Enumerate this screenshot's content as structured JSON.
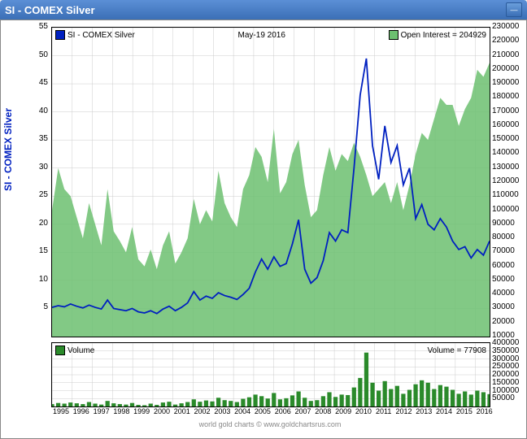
{
  "window": {
    "title": "SI  -  COMEX Silver"
  },
  "main": {
    "legend_left": "SI  -  COMEX Silver",
    "date_label": "May-19  2016",
    "legend_right": "Open Interest = 204929",
    "ylabel": "SI - COMEX Silver",
    "y_left": {
      "min": 0,
      "max": 55,
      "step": 5
    },
    "y_right": {
      "min": 10000,
      "max": 230000,
      "step": 10000
    },
    "price_color": "#0020c0",
    "oi_color": "#6cc070",
    "grid_color": "#cccccc",
    "bg": "#ffffff"
  },
  "sub": {
    "legend_left": "Volume",
    "legend_right": "Volume = 77908",
    "y_right": {
      "min": 0,
      "max": 400000,
      "step": 50000
    },
    "vol_color": "#2a8a2a"
  },
  "x": {
    "years": [
      1995,
      1996,
      1997,
      1998,
      1999,
      2000,
      2001,
      2002,
      2003,
      2004,
      2005,
      2006,
      2007,
      2008,
      2009,
      2010,
      2011,
      2012,
      2013,
      2014,
      2015,
      2016
    ]
  },
  "footer": "world gold charts © www.goldchartsrus.com",
  "series": {
    "price": [
      5.2,
      5.5,
      5.3,
      5.8,
      5.4,
      5.1,
      5.6,
      5.2,
      4.9,
      6.5,
      5.0,
      4.8,
      4.6,
      5.0,
      4.4,
      4.2,
      4.6,
      4.1,
      4.9,
      5.4,
      4.6,
      5.2,
      6.0,
      8.0,
      6.5,
      7.2,
      6.8,
      7.8,
      7.3,
      7.0,
      6.6,
      7.5,
      8.6,
      11.5,
      13.8,
      12.0,
      14.2,
      12.5,
      13.0,
      16.5,
      20.8,
      12.0,
      9.5,
      10.5,
      13.5,
      18.5,
      17.0,
      19.0,
      18.5,
      30.0,
      43.0,
      49.5,
      34.0,
      28.0,
      37.5,
      31.0,
      34.0,
      27.0,
      30.0,
      21.0,
      23.5,
      20.0,
      19.0,
      21.0,
      19.5,
      17.0,
      15.5,
      16.0,
      14.0,
      15.5,
      14.5,
      17.0
    ],
    "open_interest": [
      100000,
      130000,
      115000,
      110000,
      95000,
      80000,
      105000,
      90000,
      75000,
      115000,
      85000,
      78000,
      70000,
      88000,
      65000,
      60000,
      72000,
      58000,
      75000,
      85000,
      62000,
      70000,
      80000,
      108000,
      90000,
      100000,
      92000,
      128000,
      105000,
      95000,
      88000,
      115000,
      125000,
      145000,
      138000,
      120000,
      158000,
      112000,
      120000,
      140000,
      150000,
      118000,
      95000,
      100000,
      125000,
      145000,
      128000,
      140000,
      135000,
      148000,
      138000,
      125000,
      110000,
      115000,
      120000,
      105000,
      120000,
      100000,
      118000,
      140000,
      155000,
      150000,
      165000,
      180000,
      175000,
      175000,
      160000,
      172000,
      180000,
      200000,
      195000,
      204929
    ],
    "volume": [
      15000,
      22000,
      18000,
      25000,
      20000,
      15000,
      28000,
      18000,
      12000,
      35000,
      20000,
      15000,
      12000,
      22000,
      10000,
      8000,
      18000,
      10000,
      25000,
      30000,
      12000,
      20000,
      28000,
      45000,
      30000,
      38000,
      32000,
      55000,
      40000,
      35000,
      28000,
      48000,
      58000,
      75000,
      65000,
      50000,
      85000,
      45000,
      52000,
      70000,
      95000,
      55000,
      35000,
      40000,
      65000,
      90000,
      60000,
      75000,
      72000,
      120000,
      180000,
      340000,
      150000,
      100000,
      160000,
      110000,
      130000,
      80000,
      105000,
      140000,
      165000,
      150000,
      110000,
      135000,
      125000,
      105000,
      80000,
      95000,
      75000,
      100000,
      90000,
      77908
    ]
  }
}
